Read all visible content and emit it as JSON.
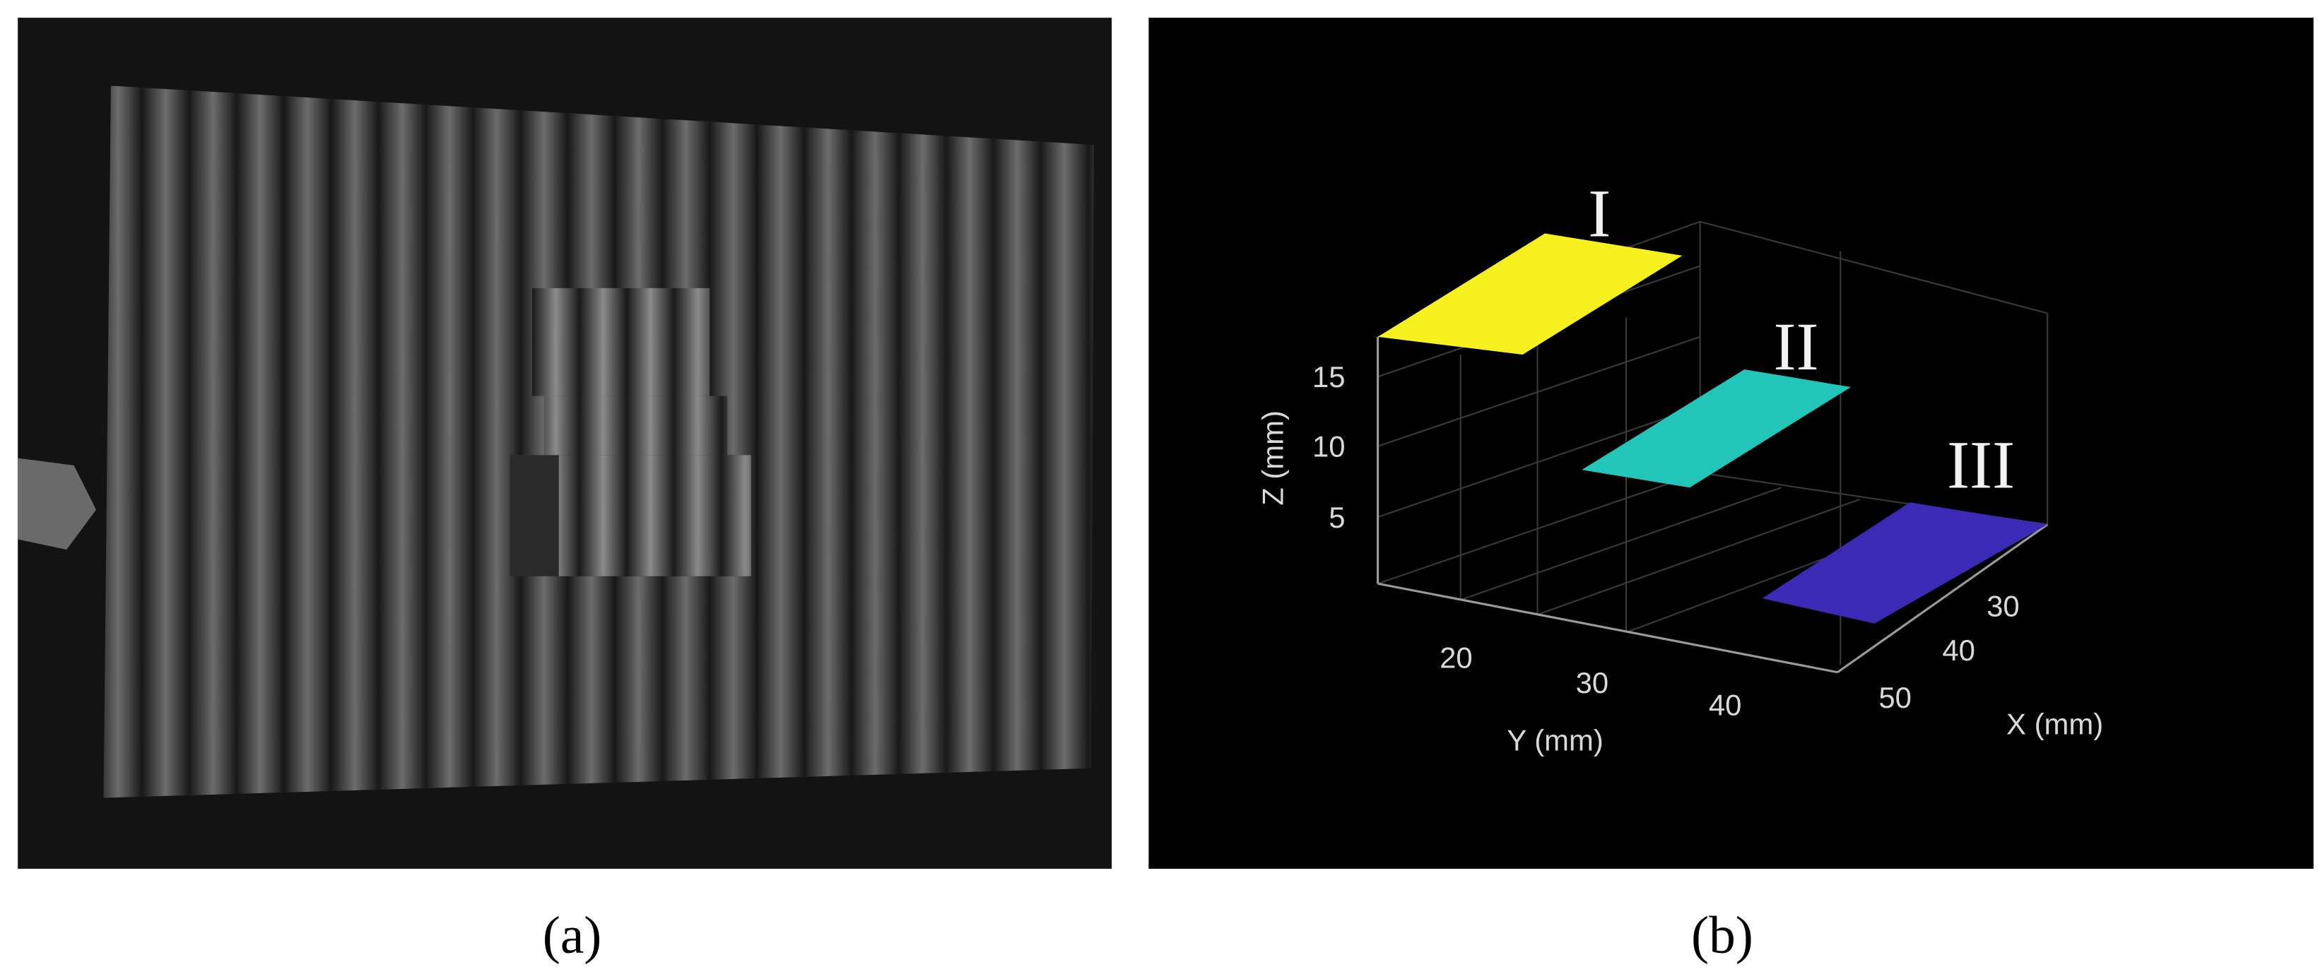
{
  "panels": [
    {
      "caption": "(a)"
    },
    {
      "caption": "(b)",
      "z_label": "Z (mm)",
      "y_label": "Y (mm)",
      "x_label": "X (mm)",
      "z_ticks": [
        "15",
        "10",
        "5"
      ],
      "y_ticks": [
        "20",
        "30",
        "40"
      ],
      "x_ticks": [
        "30",
        "40",
        "50"
      ],
      "surface_labels": [
        "I",
        "II",
        "III"
      ]
    }
  ]
}
